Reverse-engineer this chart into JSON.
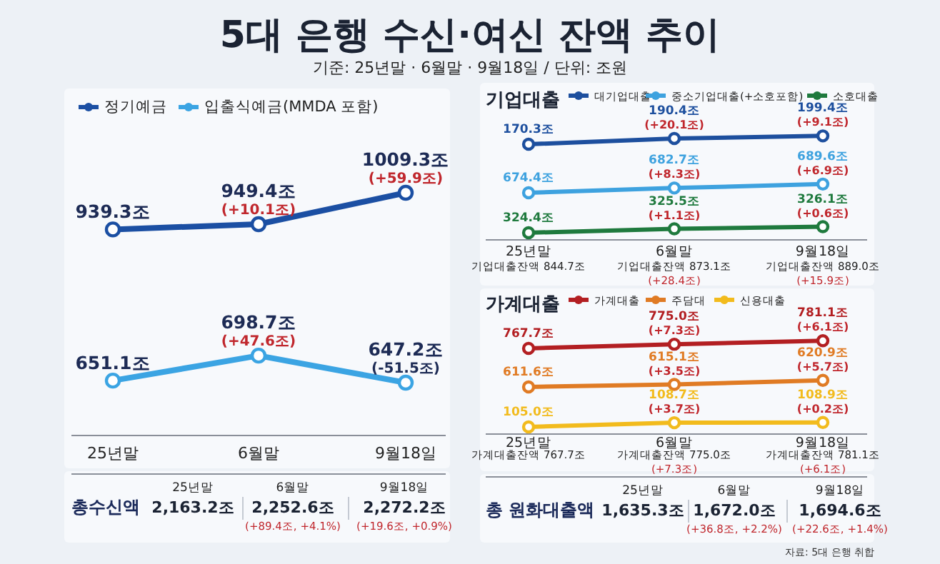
{
  "chart_data": [
    {
      "type": "other",
      "title": "5대 은행 수신·여신 잔액 추이",
      "subtitle": "기준: 25년말 · 6월말 · 9월18일 / 단위: 조원"
    },
    {
      "type": "line",
      "categories": [
        "25년말",
        "6월말",
        "9월18일"
      ],
      "legend": "top left",
      "marker": "circle",
      "tick_labels": "x",
      "series": [
        {
          "name": "정기예금",
          "color": "#1b4fa3",
          "values": [
            939.3,
            949.4,
            1009.3
          ],
          "value_labels": [
            "939.3조",
            "949.4조",
            "1009.3조"
          ]
        },
        {
          "name": "입출식예금(MMDA 포함)",
          "color": "#3ba4e3",
          "values": [
            651.1,
            698.7,
            647.2
          ],
          "value_labels": [
            "651.1조",
            "698.7조",
            "647.2조"
          ]
        }
      ],
      "annotations": [
        {
          "text": "(+10.1조)",
          "x": "6월말",
          "y": 949.4
        },
        {
          "text": "(+59.9조)",
          "x": "9월18일",
          "y": 1009.3
        },
        {
          "text": "(+47.6조)",
          "x": "6월말",
          "y": 698.7
        },
        {
          "text": "(-51.5조)",
          "x": "9월18일",
          "y": 647.2
        }
      ]
    },
    {
      "type": "other",
      "title": "총수신액",
      "categories": [
        "25년말",
        "6월말",
        "9월18일"
      ],
      "annotations": [
        {
          "text": "2,163.2조",
          "x": "25년말"
        },
        {
          "text": "2,252.6조",
          "x": "6월말"
        },
        {
          "text": "(+89.4조, +4.1%)",
          "x": "6월말"
        },
        {
          "text": "2,272.2조",
          "x": "9월18일"
        },
        {
          "text": "(+19.6조, +0.9%)",
          "x": "9월18일"
        }
      ]
    },
    {
      "type": "line",
      "title": "기업대출",
      "categories": [
        null,
        null,
        null
      ],
      "legend": "top",
      "marker": "circle",
      "series": [
        {
          "name": "대기업대출",
          "color": "#1d4f9e",
          "values": [
            170.3,
            190.4,
            199.4
          ],
          "value_labels": [
            "170.3조",
            "190.4조",
            "199.4조"
          ]
        }
      ],
      "annotations": [
        {
          "text": "(+20.1조)",
          "y": 190.4
        },
        {
          "text": "(+9.1조)",
          "y": 199.4
        }
      ]
    },
    {
      "type": "line",
      "categories": [
        null,
        null,
        null
      ],
      "legend": "top",
      "marker": "circle",
      "series": [
        {
          "name": "중소기업대출(+소호포함)",
          "color": "#3ea2df",
          "values": [
            674.4,
            682.7,
            689.6
          ],
          "value_labels": [
            "674.4조",
            "682.7조",
            "689.6조"
          ]
        }
      ],
      "annotations": [
        {
          "text": "(+8.3조)",
          "y": 682.7
        },
        {
          "text": "(+6.9조)",
          "y": 689.6
        }
      ]
    },
    {
      "type": "line",
      "categories": [
        "25년말",
        "6월말",
        "9월18일"
      ],
      "legend": "top",
      "marker": "circle",
      "tick_labels": "x",
      "series": [
        {
          "name": "소호대출",
          "color": "#1f7a3e",
          "values": [
            324.4,
            325.5,
            326.1
          ],
          "value_labels": [
            "324.4조",
            "325.5조",
            "326.1조"
          ]
        }
      ],
      "annotations": [
        {
          "text": "(+1.1조)",
          "x": "6월말",
          "y": 325.5
        },
        {
          "text": "(+0.6조)",
          "x": "9월18일",
          "y": 326.1
        },
        "기업대출잔액 844.7조",
        "기업대출잔액 873.1조",
        "(+28.4조)",
        "기업대출잔액 889.0조",
        "(+15.9조)"
      ]
    },
    {
      "type": "line",
      "title": "가계대출",
      "categories": [
        null,
        null,
        null
      ],
      "legend": "top",
      "marker": "circle",
      "series": [
        {
          "name": "가계대출",
          "color": "#b31f22",
          "values": [
            767.7,
            775.0,
            781.1
          ],
          "value_labels": [
            "767.7조",
            "775.0조",
            "781.1조"
          ]
        }
      ],
      "annotations": [
        {
          "text": "(+7.3조)",
          "y": 775.0
        },
        {
          "text": "(+6.1조)",
          "y": 781.1
        }
      ]
    },
    {
      "type": "line",
      "categories": [
        null,
        null,
        null
      ],
      "legend": "top",
      "marker": "circle",
      "series": [
        {
          "name": "주담대",
          "color": "#e07b24",
          "values": [
            611.6,
            615.1,
            620.9
          ],
          "value_labels": [
            "611.6조",
            "615.1조",
            "620.9조"
          ]
        }
      ],
      "annotations": [
        {
          "text": "(+3.5조)",
          "y": 615.1
        },
        {
          "text": "(+5.7조)",
          "y": 620.9
        }
      ]
    },
    {
      "type": "line",
      "categories": [
        "25년말",
        "6월말",
        "9월18일"
      ],
      "legend": "top",
      "marker": "circle",
      "tick_labels": "x",
      "series": [
        {
          "name": "신용대출",
          "color": "#f2bb1d",
          "values": [
            105.0,
            108.7,
            108.9
          ],
          "value_labels": [
            "105.0조",
            "108.7조",
            "108.9조"
          ]
        }
      ],
      "annotations": [
        {
          "text": "(+3.7조)",
          "x": "6월말",
          "y": 108.7
        },
        {
          "text": "(+0.2조)",
          "x": "9월18일",
          "y": 108.9
        },
        "가계대출잔액 767.7조",
        "가계대출잔액 775.0조",
        "(+7.3조)",
        "가계대출잔액 781.1조",
        "(+6.1조)"
      ]
    },
    {
      "type": "other",
      "title": "총 원화대출액",
      "categories": [
        "25년말",
        "6월말",
        "9월18일"
      ],
      "annotations": [
        {
          "text": "1,635.3조",
          "x": "25년말"
        },
        {
          "text": "1,672.0조",
          "x": "6월말"
        },
        {
          "text": "(+36.8조, +2.2%)",
          "x": "6월말"
        },
        {
          "text": "1,694.6조",
          "x": "9월18일"
        },
        {
          "text": "(+22.6조, +1.4%)",
          "x": "9월18일"
        },
        "자료: 5대 은행 취합"
      ]
    }
  ]
}
